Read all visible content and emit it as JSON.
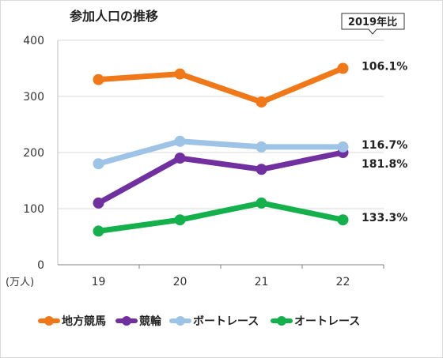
{
  "chart_data": {
    "type": "line",
    "title": "参加人口の推移",
    "badge": "2019年比",
    "y_unit": "(万人)",
    "x": [
      "19",
      "20",
      "21",
      "22"
    ],
    "ylim": [
      0,
      400
    ],
    "yticks": [
      "0",
      "100",
      "200",
      "300",
      "400"
    ],
    "grid": true,
    "legend_position": "bottom",
    "series": [
      {
        "name": "地方競馬",
        "color": "#F07818",
        "values": [
          330,
          340,
          290,
          350
        ],
        "change": "106.1%"
      },
      {
        "name": "競輪",
        "color": "#7030A0",
        "values": [
          110,
          190,
          170,
          200
        ],
        "change": "181.8%"
      },
      {
        "name": "ボートレース",
        "color": "#9DC3E6",
        "values": [
          180,
          220,
          210,
          210
        ],
        "change": "116.7%"
      },
      {
        "name": "オートレース",
        "color": "#14B04C",
        "values": [
          60,
          80,
          110,
          80
        ],
        "change": "133.3%"
      }
    ]
  }
}
